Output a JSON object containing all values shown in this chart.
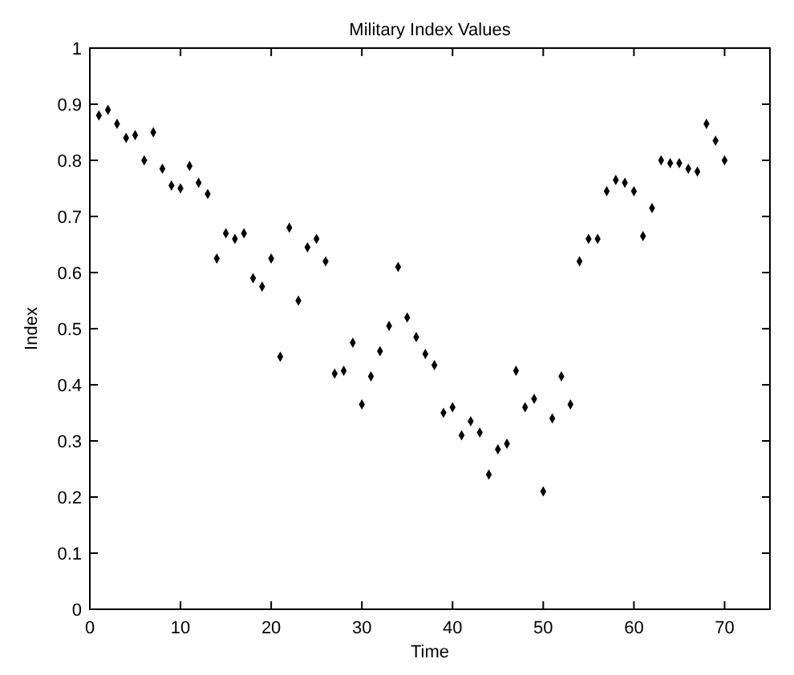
{
  "chart_data": {
    "type": "scatter",
    "title": "Military Index Values",
    "xlabel": "Time",
    "ylabel": "Index",
    "x": [
      1,
      2,
      3,
      4,
      5,
      6,
      7,
      8,
      9,
      10,
      11,
      12,
      13,
      14,
      15,
      16,
      17,
      18,
      19,
      20,
      21,
      22,
      23,
      24,
      25,
      26,
      27,
      28,
      29,
      30,
      31,
      32,
      33,
      34,
      35,
      36,
      37,
      38,
      39,
      40,
      41,
      42,
      43,
      44,
      45,
      46,
      47,
      48,
      49,
      50,
      51,
      52,
      53,
      54,
      55,
      56,
      57,
      58,
      59,
      60,
      61,
      62,
      63,
      64,
      65,
      66,
      67,
      68,
      69,
      70
    ],
    "series": [
      {
        "color": "#000000",
        "values": [
          0.88,
          0.89,
          0.865,
          0.84,
          0.845,
          0.8,
          0.85,
          0.785,
          0.755,
          0.75,
          0.79,
          0.76,
          0.74,
          0.625,
          0.67,
          0.66,
          0.67,
          0.59,
          0.575,
          0.625,
          0.45,
          0.68,
          0.55,
          0.645,
          0.66,
          0.62,
          0.42,
          0.425,
          0.475,
          0.365,
          0.415,
          0.46,
          0.505,
          0.61,
          0.52,
          0.485,
          0.455,
          0.435,
          0.35,
          0.36,
          0.31,
          0.335,
          0.315,
          0.24,
          0.285,
          0.295,
          0.425,
          0.36,
          0.375,
          0.21,
          0.34,
          0.415,
          0.365,
          0.62,
          0.66,
          0.66,
          0.745,
          0.765,
          0.76,
          0.745,
          0.665,
          0.715,
          0.8,
          0.795,
          0.795,
          0.785,
          0.78,
          0.865,
          0.835,
          0.8
        ]
      }
    ],
    "xlim": [
      0,
      75
    ],
    "xticks": [
      0,
      10,
      20,
      30,
      40,
      50,
      60,
      70
    ],
    "ylim": [
      0,
      1
    ],
    "yticks": [
      0,
      0.1,
      0.2,
      0.3,
      0.4,
      0.5,
      0.6,
      0.7,
      0.8,
      0.9,
      1
    ],
    "marker": "diamond"
  }
}
